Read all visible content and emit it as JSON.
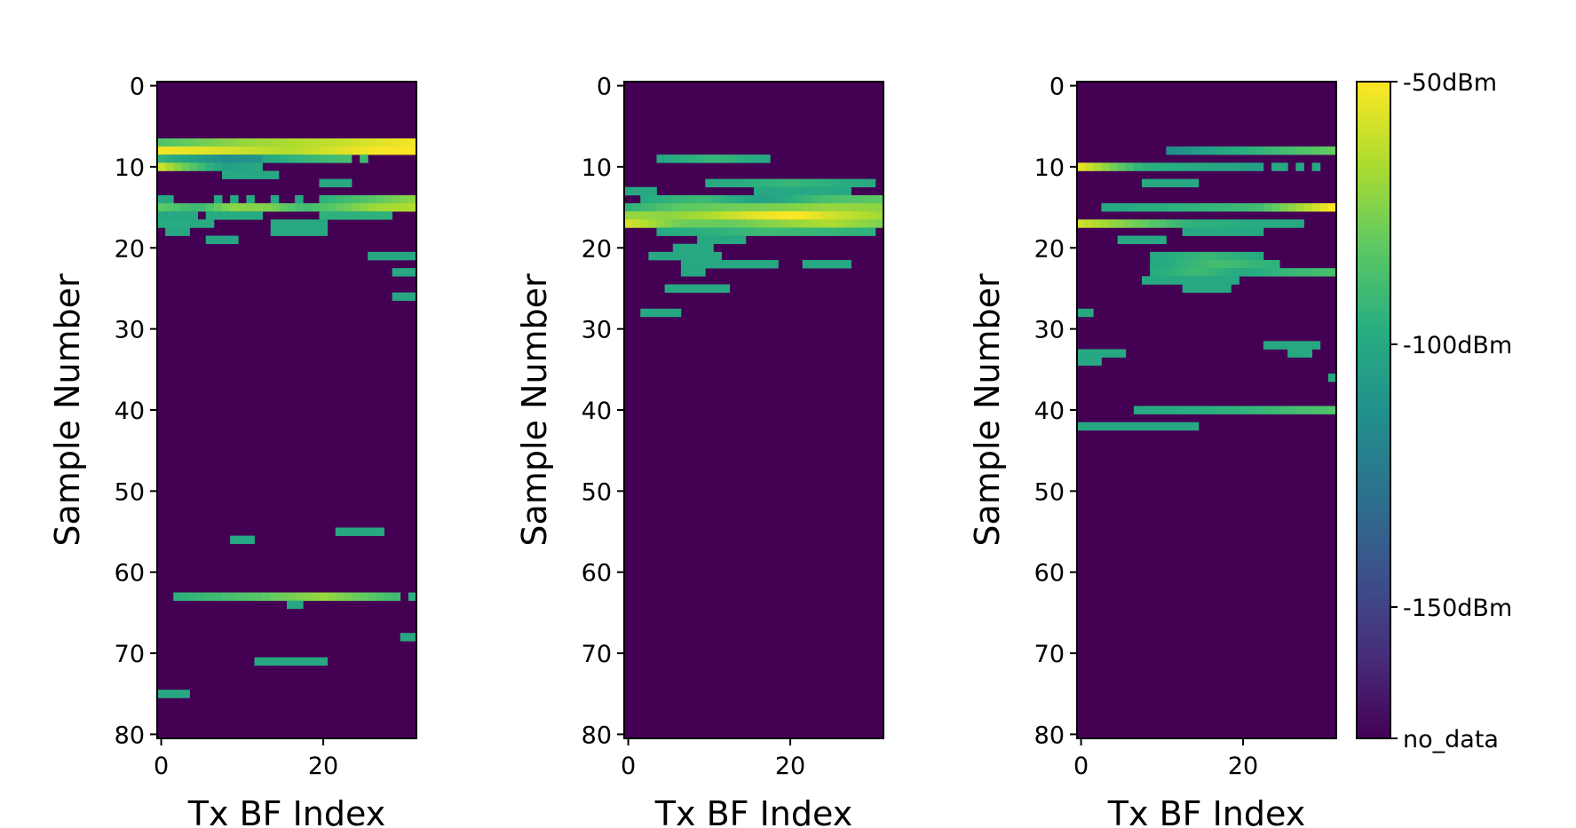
{
  "chart_data": [
    {
      "type": "heatmap",
      "panel": 1,
      "xlabel": "Tx BF Index",
      "ylabel": "Sample Number",
      "x_range": [
        -0.5,
        31.5
      ],
      "y_range": [
        80.5,
        -0.5
      ],
      "x_ticks": [
        0,
        20
      ],
      "y_ticks": [
        0,
        10,
        20,
        30,
        40,
        50,
        60,
        70,
        80
      ],
      "units": "dBm",
      "cells": [
        {
          "row": 7,
          "x0": 0,
          "x1": 31,
          "v": [
            -85,
            -70,
            -62,
            -52
          ]
        },
        {
          "row": 8,
          "x0": 0,
          "x1": 31,
          "v": [
            -52,
            -55,
            -60,
            -65,
            -58,
            -52,
            -50
          ]
        },
        {
          "row": 9,
          "x0": 0,
          "x1": 12,
          "v": [
            -95,
            -105,
            -115,
            -110
          ]
        },
        {
          "row": 9,
          "x0": 13,
          "x1": 23,
          "v": [
            -100,
            -92,
            -88
          ]
        },
        {
          "row": 9,
          "x0": 25,
          "x1": 25,
          "v": [
            -90
          ]
        },
        {
          "row": 10,
          "x0": 0,
          "x1": 12,
          "v": [
            -60,
            -85,
            -105,
            -100
          ]
        },
        {
          "row": 11,
          "x0": 8,
          "x1": 14,
          "v": [
            -100
          ]
        },
        {
          "row": 12,
          "x0": 20,
          "x1": 23,
          "v": [
            -100
          ]
        },
        {
          "row": 14,
          "x0": 0,
          "x1": 1,
          "v": [
            -100
          ]
        },
        {
          "row": 14,
          "x0": 7,
          "x1": 7,
          "v": [
            -100
          ]
        },
        {
          "row": 14,
          "x0": 9,
          "x1": 9,
          "v": [
            -100
          ]
        },
        {
          "row": 14,
          "x0": 11,
          "x1": 11,
          "v": [
            -100
          ]
        },
        {
          "row": 14,
          "x0": 14,
          "x1": 14,
          "v": [
            -100
          ]
        },
        {
          "row": 14,
          "x0": 17,
          "x1": 17,
          "v": [
            -100
          ]
        },
        {
          "row": 14,
          "x0": 20,
          "x1": 31,
          "v": [
            -95,
            -88,
            -80,
            -72
          ]
        },
        {
          "row": 15,
          "x0": 0,
          "x1": 31,
          "v": [
            -82,
            -92,
            -72,
            -75,
            -90,
            -80,
            -68,
            -65
          ]
        },
        {
          "row": 16,
          "x0": 0,
          "x1": 4,
          "v": [
            -100
          ]
        },
        {
          "row": 16,
          "x0": 6,
          "x1": 12,
          "v": [
            -98
          ]
        },
        {
          "row": 16,
          "x0": 20,
          "x1": 28,
          "v": [
            -95
          ]
        },
        {
          "row": 17,
          "x0": 0,
          "x1": 6,
          "v": [
            -98
          ]
        },
        {
          "row": 17,
          "x0": 14,
          "x1": 20,
          "v": [
            -100
          ]
        },
        {
          "row": 18,
          "x0": 1,
          "x1": 3,
          "v": [
            -100
          ]
        },
        {
          "row": 18,
          "x0": 14,
          "x1": 20,
          "v": [
            -100
          ]
        },
        {
          "row": 19,
          "x0": 6,
          "x1": 9,
          "v": [
            -102
          ]
        },
        {
          "row": 21,
          "x0": 26,
          "x1": 31,
          "v": [
            -100
          ]
        },
        {
          "row": 23,
          "x0": 29,
          "x1": 31,
          "v": [
            -100
          ]
        },
        {
          "row": 26,
          "x0": 29,
          "x1": 31,
          "v": [
            -100
          ]
        },
        {
          "row": 55,
          "x0": 22,
          "x1": 27,
          "v": [
            -100
          ]
        },
        {
          "row": 56,
          "x0": 9,
          "x1": 11,
          "v": [
            -100
          ]
        },
        {
          "row": 63,
          "x0": 2,
          "x1": 29,
          "v": [
            -95,
            -85,
            -70,
            -90
          ]
        },
        {
          "row": 63,
          "x0": 31,
          "x1": 31,
          "v": [
            -95
          ]
        },
        {
          "row": 64,
          "x0": 16,
          "x1": 17,
          "v": [
            -100
          ]
        },
        {
          "row": 68,
          "x0": 30,
          "x1": 31,
          "v": [
            -100
          ]
        },
        {
          "row": 71,
          "x0": 12,
          "x1": 20,
          "v": [
            -100
          ]
        },
        {
          "row": 75,
          "x0": 0,
          "x1": 3,
          "v": [
            -100
          ]
        }
      ]
    },
    {
      "type": "heatmap",
      "panel": 2,
      "xlabel": "Tx BF Index",
      "ylabel": "Sample Number",
      "x_range": [
        -0.5,
        31.5
      ],
      "y_range": [
        80.5,
        -0.5
      ],
      "x_ticks": [
        0,
        20
      ],
      "y_ticks": [
        0,
        10,
        20,
        30,
        40,
        50,
        60,
        70,
        80
      ],
      "units": "dBm",
      "cells": [
        {
          "row": 9,
          "x0": 4,
          "x1": 17,
          "v": [
            -100,
            -92,
            -100
          ]
        },
        {
          "row": 12,
          "x0": 10,
          "x1": 30,
          "v": [
            -100,
            -92,
            -100
          ]
        },
        {
          "row": 13,
          "x0": 0,
          "x1": 3,
          "v": [
            -100
          ]
        },
        {
          "row": 13,
          "x0": 16,
          "x1": 27,
          "v": [
            -100
          ]
        },
        {
          "row": 14,
          "x0": 2,
          "x1": 31,
          "v": [
            -98,
            -90,
            -105,
            -88,
            -82
          ]
        },
        {
          "row": 15,
          "x0": 0,
          "x1": 31,
          "v": [
            -95,
            -82,
            -78,
            -75,
            -70,
            -72
          ]
        },
        {
          "row": 16,
          "x0": 0,
          "x1": 31,
          "v": [
            -70,
            -72,
            -65,
            -55,
            -50,
            -60,
            -68
          ]
        },
        {
          "row": 17,
          "x0": 0,
          "x1": 31,
          "v": [
            -58,
            -78,
            -80,
            -72,
            -65,
            -75
          ]
        },
        {
          "row": 18,
          "x0": 4,
          "x1": 30,
          "v": [
            -100,
            -90,
            -95
          ]
        },
        {
          "row": 19,
          "x0": 9,
          "x1": 14,
          "v": [
            -100
          ]
        },
        {
          "row": 20,
          "x0": 6,
          "x1": 10,
          "v": [
            -100
          ]
        },
        {
          "row": 21,
          "x0": 3,
          "x1": 11,
          "v": [
            -100
          ]
        },
        {
          "row": 22,
          "x0": 7,
          "x1": 18,
          "v": [
            -100
          ]
        },
        {
          "row": 22,
          "x0": 22,
          "x1": 27,
          "v": [
            -100
          ]
        },
        {
          "row": 23,
          "x0": 7,
          "x1": 9,
          "v": [
            -100
          ]
        },
        {
          "row": 25,
          "x0": 5,
          "x1": 12,
          "v": [
            -100
          ]
        },
        {
          "row": 28,
          "x0": 2,
          "x1": 6,
          "v": [
            -100
          ]
        }
      ]
    },
    {
      "type": "heatmap",
      "panel": 3,
      "xlabel": "Tx BF Index",
      "ylabel": "Sample Number",
      "x_range": [
        -0.5,
        31.5
      ],
      "y_range": [
        80.5,
        -0.5
      ],
      "x_ticks": [
        0,
        20
      ],
      "y_ticks": [
        0,
        10,
        20,
        30,
        40,
        50,
        60,
        70,
        80
      ],
      "units": "dBm",
      "cells": [
        {
          "row": 8,
          "x0": 11,
          "x1": 31,
          "v": [
            -115,
            -100,
            -90,
            -80
          ]
        },
        {
          "row": 10,
          "x0": 0,
          "x1": 22,
          "v": [
            -55,
            -95,
            -100,
            -105
          ]
        },
        {
          "row": 10,
          "x0": 24,
          "x1": 25,
          "v": [
            -100
          ]
        },
        {
          "row": 10,
          "x0": 27,
          "x1": 27,
          "v": [
            -100
          ]
        },
        {
          "row": 10,
          "x0": 29,
          "x1": 29,
          "v": [
            -100
          ]
        },
        {
          "row": 12,
          "x0": 8,
          "x1": 14,
          "v": [
            -100
          ]
        },
        {
          "row": 15,
          "x0": 3,
          "x1": 31,
          "v": [
            -100,
            -95,
            -90,
            -50
          ]
        },
        {
          "row": 17,
          "x0": 0,
          "x1": 27,
          "v": [
            -60,
            -95,
            -100
          ]
        },
        {
          "row": 18,
          "x0": 13,
          "x1": 22,
          "v": [
            -100
          ]
        },
        {
          "row": 19,
          "x0": 5,
          "x1": 10,
          "v": [
            -100
          ]
        },
        {
          "row": 21,
          "x0": 9,
          "x1": 22,
          "v": [
            -100,
            -92,
            -98
          ]
        },
        {
          "row": 22,
          "x0": 9,
          "x1": 24,
          "v": [
            -100,
            -88,
            -95
          ]
        },
        {
          "row": 23,
          "x0": 9,
          "x1": 31,
          "v": [
            -98,
            -90,
            -100,
            -92,
            -88
          ]
        },
        {
          "row": 24,
          "x0": 8,
          "x1": 19,
          "v": [
            -100
          ]
        },
        {
          "row": 25,
          "x0": 13,
          "x1": 18,
          "v": [
            -100
          ]
        },
        {
          "row": 28,
          "x0": 0,
          "x1": 1,
          "v": [
            -100
          ]
        },
        {
          "row": 32,
          "x0": 23,
          "x1": 29,
          "v": [
            -100
          ]
        },
        {
          "row": 33,
          "x0": 0,
          "x1": 5,
          "v": [
            -100
          ]
        },
        {
          "row": 33,
          "x0": 26,
          "x1": 28,
          "v": [
            -100
          ]
        },
        {
          "row": 34,
          "x0": 0,
          "x1": 2,
          "v": [
            -100
          ]
        },
        {
          "row": 36,
          "x0": 31,
          "x1": 31,
          "v": [
            -100
          ]
        },
        {
          "row": 40,
          "x0": 7,
          "x1": 31,
          "v": [
            -100,
            -95,
            -85
          ]
        },
        {
          "row": 42,
          "x0": 0,
          "x1": 14,
          "v": [
            -100
          ]
        }
      ]
    }
  ],
  "colorbar": {
    "colormap": "viridis",
    "range": [
      -175,
      -50
    ],
    "ticks": [
      {
        "value": -50,
        "label": "-50dBm"
      },
      {
        "value": -100,
        "label": "-100dBm"
      },
      {
        "value": -150,
        "label": "-150dBm"
      },
      {
        "value": -175,
        "label": "no_data"
      }
    ]
  },
  "colors": {
    "no_data": "#440154",
    "axis": "#000000"
  }
}
